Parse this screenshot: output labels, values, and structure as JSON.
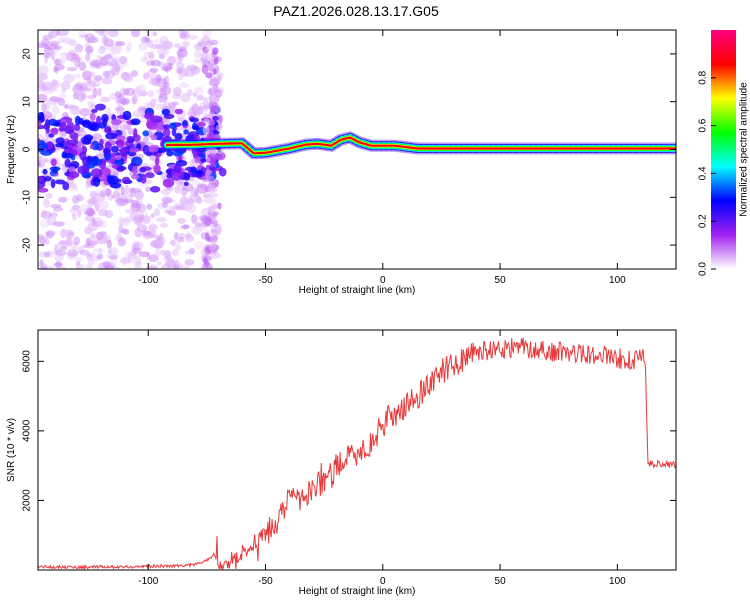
{
  "title": "PAZ1.2026.028.13.17.G05",
  "chart_data": [
    {
      "type": "heatmap",
      "xlabel": "Height of straight line (km)",
      "ylabel": "Frequency (Hz)",
      "xlim": [
        -147,
        125
      ],
      "ylim": [
        -25,
        25
      ],
      "xticks": [
        -100,
        -50,
        0,
        50,
        100
      ],
      "yticks": [
        -20,
        -10,
        0,
        10,
        20
      ],
      "colorbar": {
        "label": "Normalized spectral amplitude",
        "range": [
          0,
          1
        ],
        "ticks": [
          0.0,
          0.2,
          0.4,
          0.6,
          0.8
        ],
        "tick_labels": [
          "0.0",
          "0.2",
          "0.4",
          "0.6",
          "0.8"
        ],
        "colormap": [
          "#ffffff",
          "#a020f0",
          "#0000ff",
          "#00ffff",
          "#00ff00",
          "#ffff00",
          "#ff0000",
          "#ff0080"
        ]
      },
      "ridge_frequency": {
        "x": [
          -147,
          -120,
          -100,
          -80,
          -70,
          -60,
          -55,
          -50,
          -40,
          -33,
          -28,
          -22,
          -18,
          -14,
          -10,
          -5,
          0,
          5,
          10,
          15,
          20,
          40,
          60,
          80,
          100,
          125
        ],
        "y": [
          0.5,
          0.8,
          0.9,
          1.0,
          1.2,
          1.3,
          -0.8,
          -0.7,
          0.2,
          1.0,
          1.2,
          0.8,
          2.0,
          2.5,
          1.5,
          0.8,
          0.8,
          0.8,
          0.5,
          0.2,
          0.2,
          0.2,
          0.2,
          0.2,
          0.2,
          0.2
        ]
      }
    },
    {
      "type": "line",
      "xlabel": "Height of straight line (km)",
      "ylabel": "SNR (10 * v/v)",
      "xlim": [
        -147,
        125
      ],
      "ylim": [
        0,
        6900
      ],
      "xticks": [
        -100,
        -50,
        0,
        50,
        100
      ],
      "yticks": [
        2000,
        4000,
        6000
      ],
      "series": [
        {
          "name": "SNR",
          "color": "#e8393b",
          "x": [
            -147,
            -130,
            -110,
            -90,
            -80,
            -75,
            -72,
            -70,
            -65,
            -60,
            -55,
            -50,
            -45,
            -40,
            -37,
            -35,
            -30,
            -25,
            -20,
            -15,
            -10,
            -5,
            0,
            5,
            10,
            15,
            20,
            25,
            30,
            35,
            40,
            45,
            50,
            60,
            70,
            80,
            90,
            100,
            108,
            111,
            112,
            113,
            115,
            120,
            125
          ],
          "y": [
            100,
            80,
            90,
            120,
            150,
            280,
            450,
            120,
            180,
            500,
            800,
            1150,
            1400,
            1900,
            2200,
            2100,
            2400,
            2700,
            3000,
            3200,
            3400,
            3600,
            4200,
            4500,
            4700,
            5000,
            5400,
            5700,
            5900,
            6100,
            6300,
            6300,
            6350,
            6400,
            6300,
            6250,
            6200,
            6100,
            6000,
            6100,
            5900,
            3100,
            3050,
            3050,
            3000
          ]
        }
      ]
    }
  ]
}
